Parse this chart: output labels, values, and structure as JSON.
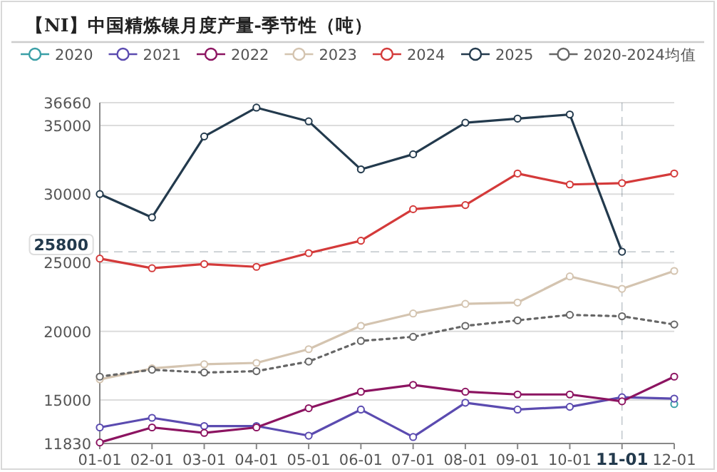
{
  "chart_data": {
    "type": "line",
    "title": "【NI】中国精炼镍月度产量-季节性（吨）",
    "categories": [
      "01-01",
      "02-01",
      "03-01",
      "04-01",
      "05-01",
      "06-01",
      "07-01",
      "08-01",
      "09-01",
      "10-01",
      "11-01",
      "12-01"
    ],
    "series": [
      {
        "name": "2020",
        "color": "#3a9fa6",
        "values": [
          null,
          null,
          null,
          null,
          null,
          null,
          null,
          null,
          null,
          null,
          null,
          14700
        ]
      },
      {
        "name": "2021",
        "color": "#5b4bb0",
        "values": [
          13000,
          13700,
          13100,
          13100,
          12400,
          14300,
          12300,
          14800,
          14300,
          14500,
          15200,
          15100
        ]
      },
      {
        "name": "2022",
        "color": "#8c1461",
        "values": [
          11900,
          13000,
          12600,
          13000,
          14400,
          15600,
          16100,
          15600,
          15400,
          15400,
          14900,
          16700
        ]
      },
      {
        "name": "2023",
        "color": "#d4c4b0",
        "values": [
          16500,
          17300,
          17600,
          17700,
          18700,
          20400,
          21300,
          22000,
          22100,
          24000,
          23100,
          24400
        ]
      },
      {
        "name": "2024",
        "color": "#d43a3a",
        "values": [
          25300,
          24600,
          24900,
          24700,
          25700,
          26600,
          28900,
          29200,
          31500,
          30700,
          30800,
          31500
        ]
      },
      {
        "name": "2025",
        "color": "#233a4d",
        "values": [
          30000,
          28300,
          34200,
          36300,
          35300,
          31800,
          32900,
          35200,
          35500,
          35800,
          25800,
          null
        ]
      },
      {
        "name": "2020-2024均值",
        "color": "#666666",
        "line_style": "dotted",
        "values": [
          16700,
          17200,
          17000,
          17100,
          17800,
          19300,
          19600,
          20400,
          20800,
          21200,
          21100,
          20500
        ]
      }
    ],
    "ylim": [
      11830,
      36660
    ],
    "yticks": [
      11830,
      15000,
      20000,
      25000,
      30000,
      35000,
      36660
    ],
    "grid": "y",
    "legend": "top",
    "marker": "circle",
    "line_style": "solid",
    "ref_lines": [
      {
        "axis": "y",
        "value": 25800,
        "label": "25800",
        "color": "#233a4d",
        "line_style": "dashed"
      },
      {
        "axis": "x",
        "value": "11-01",
        "color": "#233a4d",
        "line_style": "dashed"
      }
    ]
  }
}
